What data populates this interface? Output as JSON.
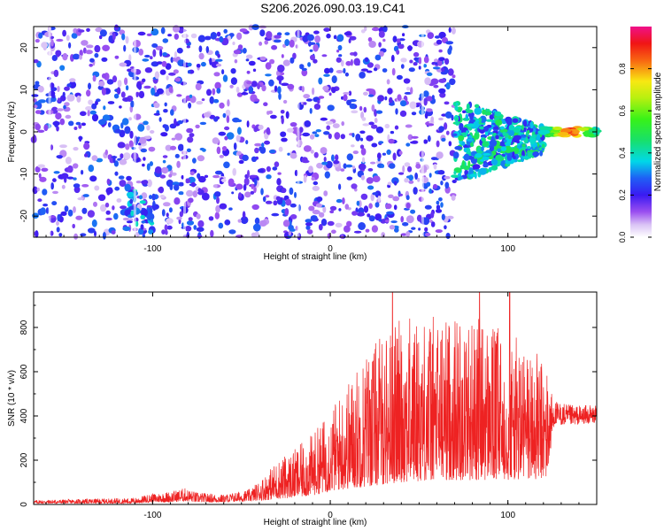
{
  "title": "S206.2026.090.03.19.C41",
  "chart_data": [
    {
      "id": "spectrogram",
      "type": "heatmap",
      "xlabel": "Height of straight line (km)",
      "ylabel": "Frequency (Hz)",
      "xlim": [
        -167,
        150
      ],
      "ylim": [
        -25,
        25
      ],
      "x_ticks": [
        -100,
        0,
        100
      ],
      "y_ticks": [
        -20,
        -10,
        0,
        10,
        20
      ],
      "colorbar": {
        "label": "Normalized spectral amplitude",
        "range": [
          0,
          1
        ],
        "ticks": [
          0.0,
          0.2,
          0.4,
          0.6,
          0.8
        ],
        "colorscale": "white-purple-blue-cyan-green-yellow-red-magenta"
      },
      "regions": [
        {
          "x_range": [
            -167,
            70
          ],
          "freq_range": [
            -25,
            25
          ],
          "amplitude_range": [
            0.05,
            0.3
          ],
          "description": "diffuse broadband purple speckle"
        },
        {
          "x_range": [
            -115,
            -98
          ],
          "freq_range": [
            -24,
            -13
          ],
          "amplitude_range": [
            0.2,
            0.4
          ],
          "description": "bright blue patch"
        },
        {
          "x_range": [
            70,
            120
          ],
          "freq_range": [
            -10,
            5
          ],
          "amplitude_range": [
            0.2,
            0.5
          ],
          "description": "converging wedge, blue"
        },
        {
          "x_range": [
            120,
            150
          ],
          "freq_range": [
            -1,
            1
          ],
          "amplitude_range": [
            0.4,
            1.0
          ],
          "description": "narrow strong line near 0 Hz, peak red at ~135 km"
        }
      ],
      "peak": {
        "x": 135,
        "freq": 0,
        "amplitude": 0.95
      }
    },
    {
      "id": "snr",
      "type": "line",
      "xlabel": "Height of straight line (km)",
      "ylabel": "SNR (10 * v/v)",
      "xlim": [
        -167,
        150
      ],
      "ylim": [
        0,
        960
      ],
      "x_ticks": [
        -100,
        0,
        100
      ],
      "y_ticks": [
        0,
        200,
        400,
        600,
        800
      ],
      "color": "#ee2222",
      "envelope": [
        {
          "x": -167,
          "low": 5,
          "high": 20
        },
        {
          "x": -110,
          "low": 5,
          "high": 30
        },
        {
          "x": -100,
          "low": 10,
          "high": 50
        },
        {
          "x": -90,
          "low": 10,
          "high": 60
        },
        {
          "x": -82,
          "low": 15,
          "high": 75
        },
        {
          "x": -75,
          "low": 10,
          "high": 55
        },
        {
          "x": -60,
          "low": 10,
          "high": 45
        },
        {
          "x": -45,
          "low": 15,
          "high": 70
        },
        {
          "x": -35,
          "low": 20,
          "high": 150
        },
        {
          "x": -30,
          "low": 25,
          "high": 200
        },
        {
          "x": -20,
          "low": 30,
          "high": 250
        },
        {
          "x": -10,
          "low": 40,
          "high": 320
        },
        {
          "x": 0,
          "low": 60,
          "high": 430
        },
        {
          "x": 10,
          "low": 70,
          "high": 560
        },
        {
          "x": 20,
          "low": 80,
          "high": 700
        },
        {
          "x": 30,
          "low": 90,
          "high": 780
        },
        {
          "x": 40,
          "low": 100,
          "high": 850
        },
        {
          "x": 60,
          "low": 110,
          "high": 860
        },
        {
          "x": 80,
          "low": 110,
          "high": 860
        },
        {
          "x": 100,
          "low": 110,
          "high": 780
        },
        {
          "x": 115,
          "low": 110,
          "high": 700
        },
        {
          "x": 122,
          "low": 120,
          "high": 620
        },
        {
          "x": 126,
          "low": 360,
          "high": 470
        },
        {
          "x": 135,
          "low": 360,
          "high": 450
        },
        {
          "x": 150,
          "low": 370,
          "high": 450
        }
      ],
      "spikes": [
        {
          "x": 35,
          "y": 960
        },
        {
          "x": 84,
          "y": 960
        },
        {
          "x": 101,
          "y": 960
        }
      ]
    }
  ]
}
